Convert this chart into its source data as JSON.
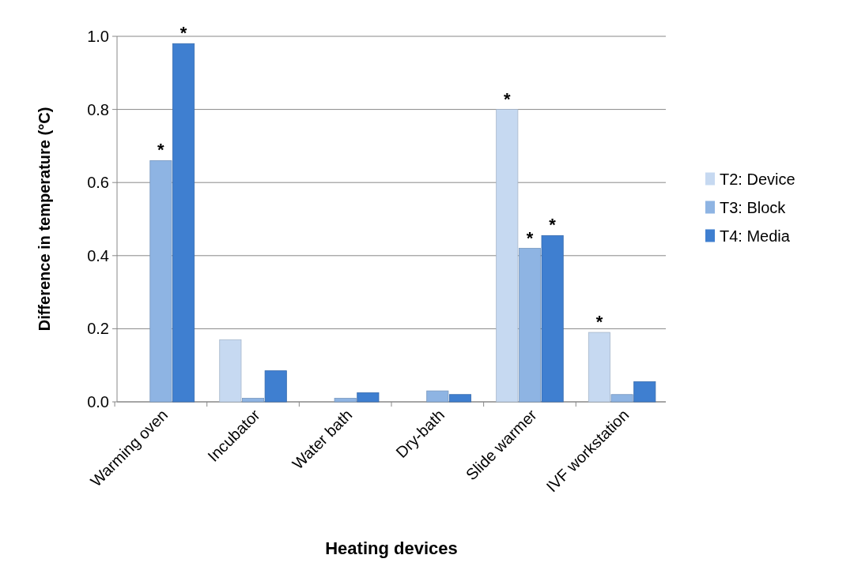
{
  "chart_data": {
    "type": "bar",
    "xlabel": "Heating devices",
    "ylabel": "Difference in temperature (°C)",
    "categories": [
      "Warming oven",
      "Incubator",
      "Water bath",
      "Dry-bath",
      "Slide warmer",
      "IVF workstation"
    ],
    "series": [
      {
        "name": "T2: Device",
        "color": "#c6d9f1",
        "values": [
          0,
          0.17,
          0,
          0,
          0.8,
          0.19
        ],
        "value_labels": [
          null,
          null,
          null,
          null,
          "*",
          "*"
        ]
      },
      {
        "name": "T3: Block",
        "color": "#8eb4e3",
        "values": [
          0.66,
          0.01,
          0.01,
          0.03,
          0.42,
          0.02
        ],
        "value_labels": [
          "*",
          null,
          null,
          null,
          "*",
          null
        ]
      },
      {
        "name": "T4: Media",
        "color": "#3f7fd0",
        "values": [
          0.98,
          0.085,
          0.025,
          0.02,
          0.455,
          0.055
        ],
        "value_labels": [
          "*",
          null,
          null,
          null,
          "*",
          null
        ]
      }
    ],
    "ylim": [
      0,
      1
    ],
    "yticks": [
      {
        "value": 0,
        "label": "0.0"
      },
      {
        "value": 0.2,
        "label": "0.2"
      },
      {
        "value": 0.4,
        "label": "0.4"
      },
      {
        "value": 0.6,
        "label": "0.6"
      },
      {
        "value": 0.8,
        "label": "0.8"
      },
      {
        "value": 1,
        "label": "1.0"
      }
    ],
    "grid": "y",
    "legend": "right"
  }
}
